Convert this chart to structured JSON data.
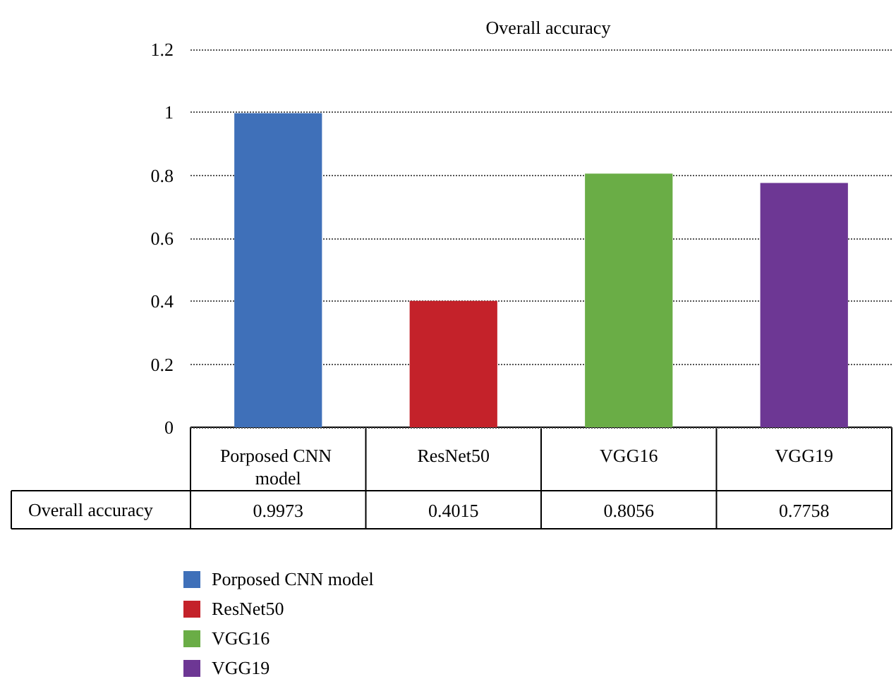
{
  "chart_data": {
    "type": "bar",
    "title": "Overall accuracy",
    "categories": [
      "Porposed CNN model",
      "ResNet50",
      "VGG16",
      "VGG19"
    ],
    "series": [
      {
        "name": "Overall accuracy",
        "values": [
          0.9973,
          0.4015,
          0.8056,
          0.7758
        ],
        "colors": [
          "#3f70b9",
          "#c4222a",
          "#6aad46",
          "#6d3794"
        ]
      }
    ],
    "ylim": [
      0,
      1.2
    ],
    "yticks": [
      0,
      0.2,
      0.4,
      0.6,
      0.8,
      1,
      1.2
    ],
    "grid": "y",
    "legend": "bottom",
    "data_labels": true
  }
}
